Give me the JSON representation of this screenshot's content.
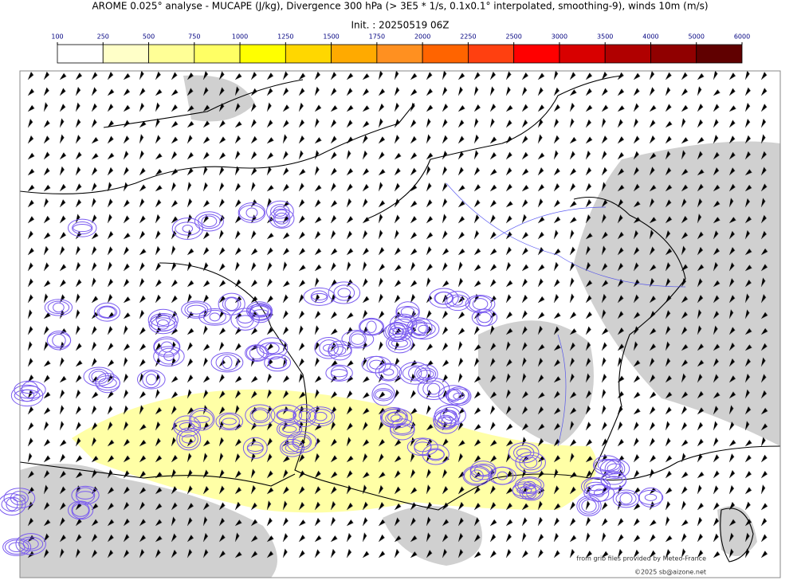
{
  "header": {
    "title": "AROME 0.025° analyse - MUCAPE (J/kg), Divergence 300 hPa (> 3E5 * 1/s, 0.1x0.1° interpolated, smoothing-9), winds 10m (m/s)",
    "init": "Init. : 20250519 06Z"
  },
  "colorbar": {
    "ticks": [
      100,
      250,
      500,
      750,
      1000,
      1250,
      1500,
      1750,
      2000,
      2250,
      2500,
      3000,
      3500,
      4000,
      5000,
      6000
    ],
    "colors": [
      "#ffffff",
      "#ffffc8",
      "#ffff96",
      "#ffff64",
      "#ffff00",
      "#ffd700",
      "#ffaa00",
      "#ff9020",
      "#ff6400",
      "#ff4010",
      "#ff0000",
      "#d80000",
      "#b00000",
      "#900000",
      "#600000"
    ]
  },
  "credits": {
    "source": "from grib files provided by Meteo-France",
    "copyright": "©2025 sb@aizone.net"
  }
}
